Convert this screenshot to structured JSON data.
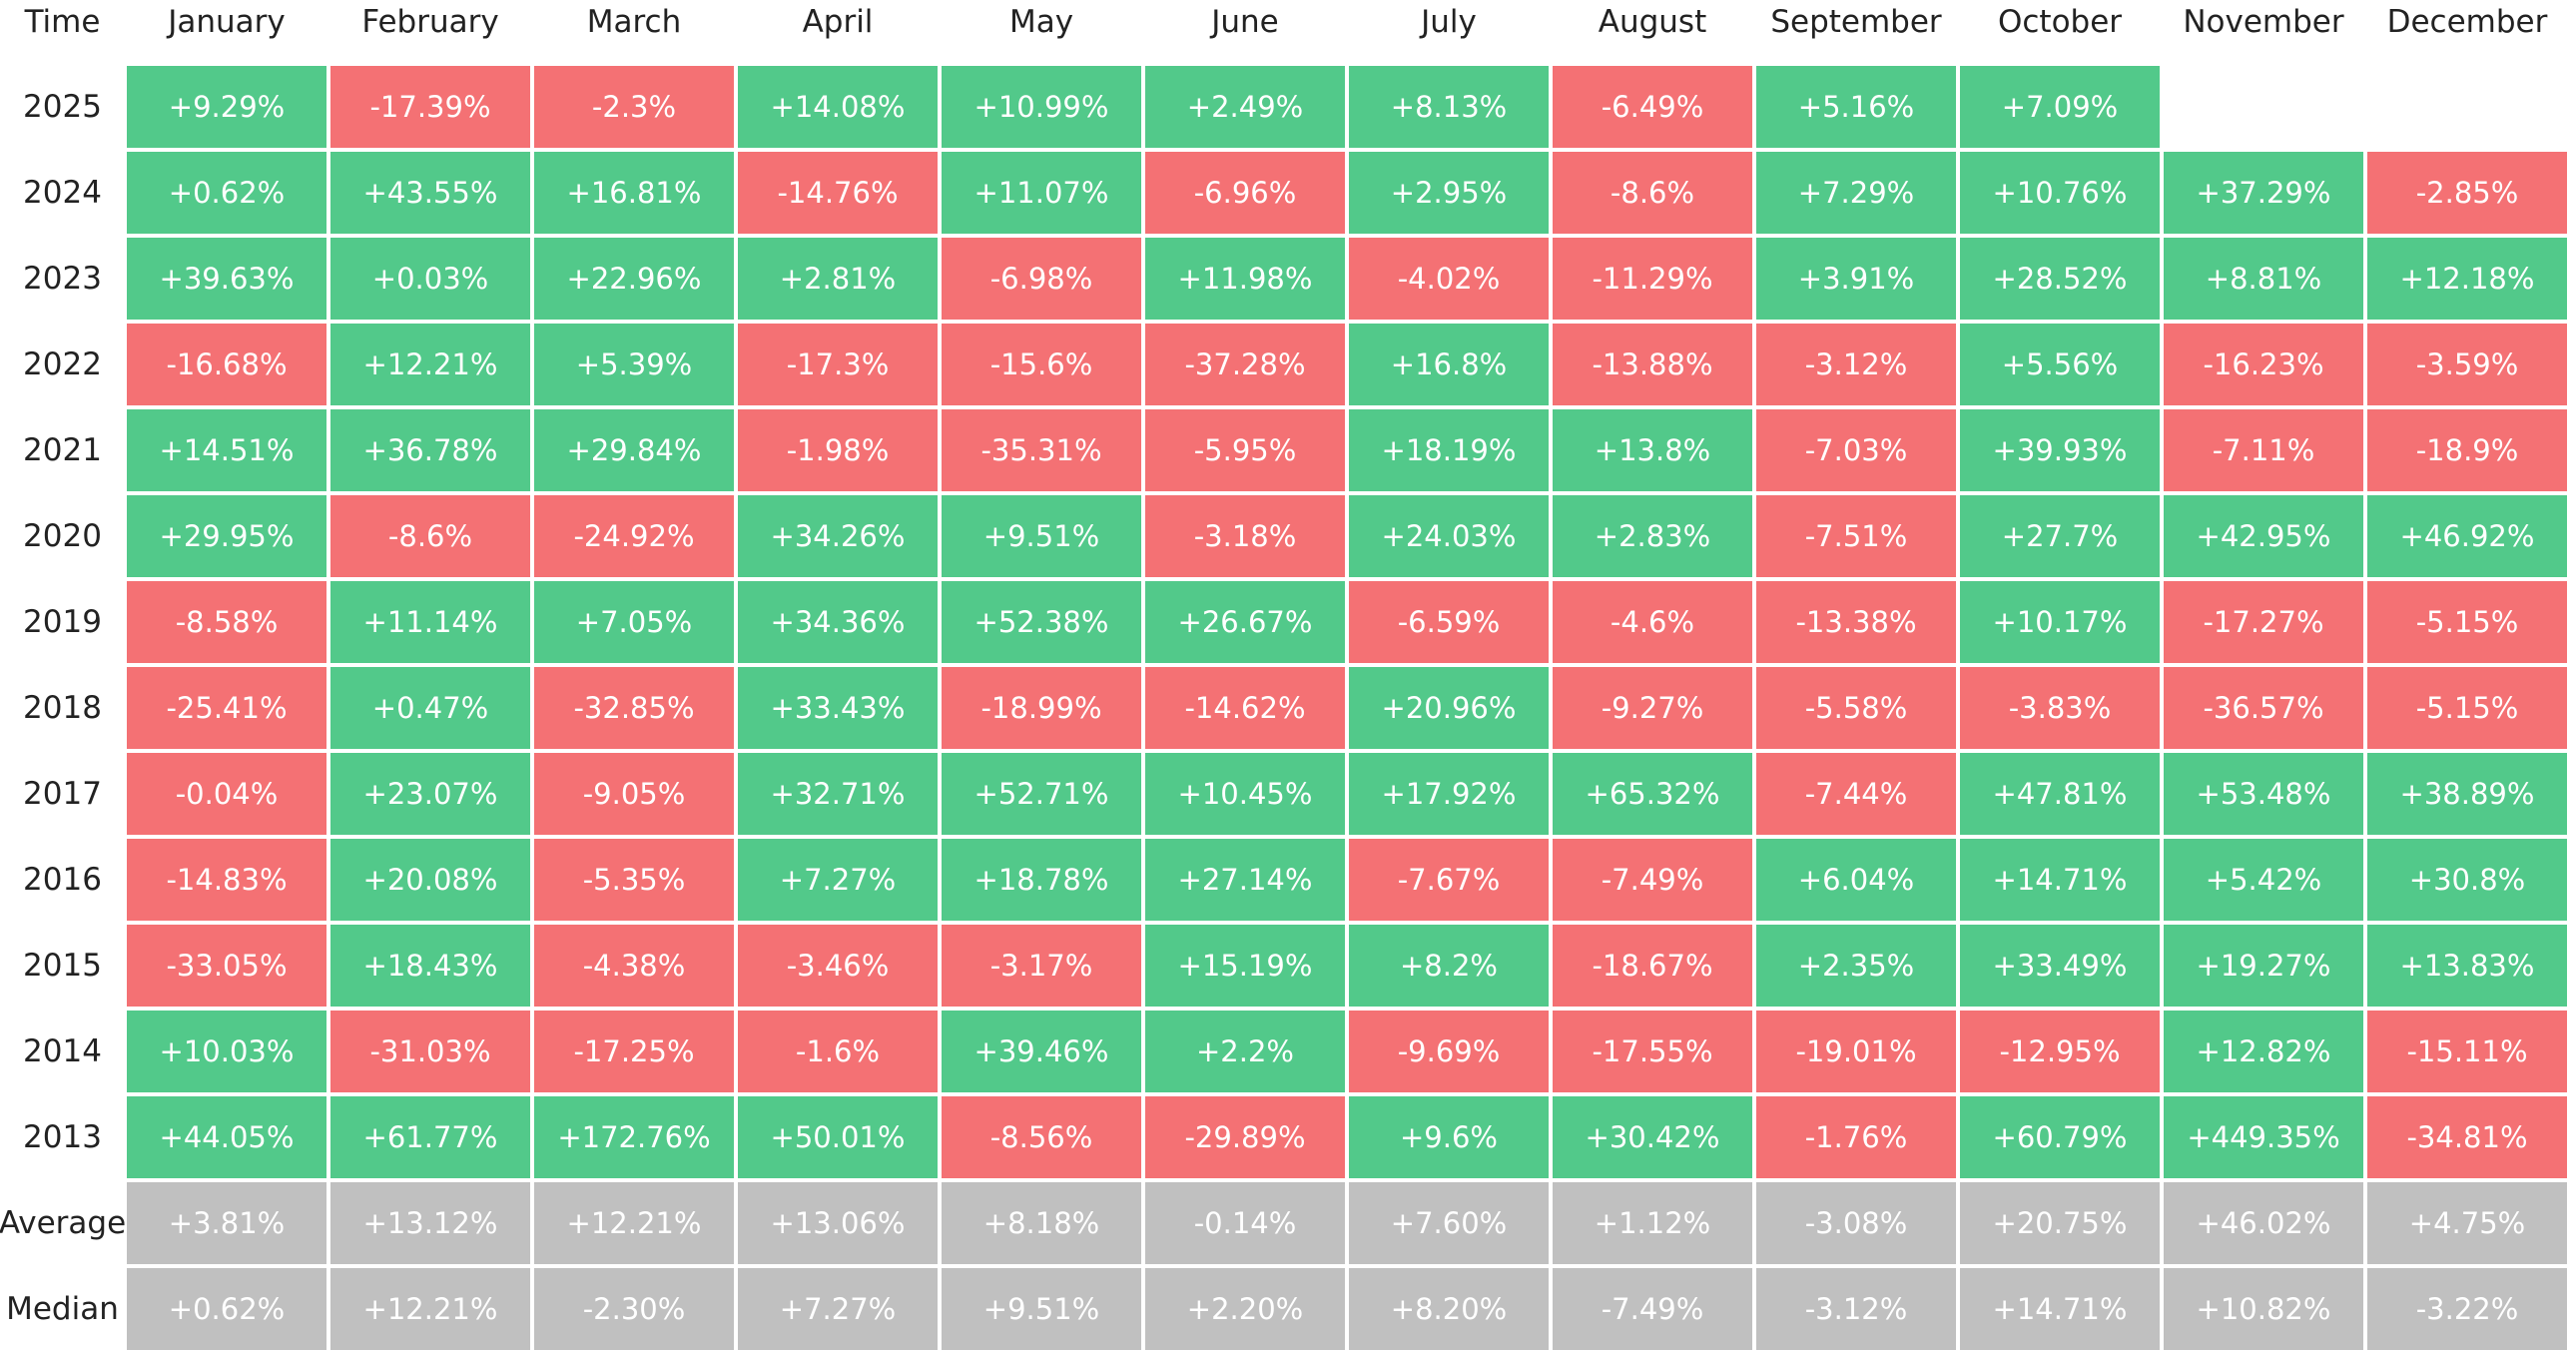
{
  "table": {
    "header": [
      "Time",
      "January",
      "February",
      "March",
      "April",
      "May",
      "June",
      "July",
      "August",
      "September",
      "October",
      "November",
      "December"
    ],
    "rows": [
      [
        "2025",
        "+9.29%",
        "-17.39%",
        "-2.3%",
        "+14.08%",
        "+10.99%",
        "+2.49%",
        "+8.13%",
        "-6.49%",
        "+5.16%",
        "+7.09%"
      ],
      [
        "2024",
        "+0.62%",
        "+43.55%",
        "+16.81%",
        "-14.76%",
        "+11.07%",
        "-6.96%",
        "+2.95%",
        "-8.6%",
        "+7.29%",
        "+10.76%",
        "+37.29%",
        "-2.85%"
      ],
      [
        "2023",
        "+39.63%",
        "+0.03%",
        "+22.96%",
        "+2.81%",
        "-6.98%",
        "+11.98%",
        "-4.02%",
        "-11.29%",
        "+3.91%",
        "+28.52%",
        "+8.81%",
        "+12.18%"
      ],
      [
        "2022",
        "-16.68%",
        "+12.21%",
        "+5.39%",
        "-17.3%",
        "-15.6%",
        "-37.28%",
        "+16.8%",
        "-13.88%",
        "-3.12%",
        "+5.56%",
        "-16.23%",
        "-3.59%"
      ],
      [
        "2021",
        "+14.51%",
        "+36.78%",
        "+29.84%",
        "-1.98%",
        "-35.31%",
        "-5.95%",
        "+18.19%",
        "+13.8%",
        "-7.03%",
        "+39.93%",
        "-7.11%",
        "-18.9%"
      ],
      [
        "2020",
        "+29.95%",
        "-8.6%",
        "-24.92%",
        "+34.26%",
        "+9.51%",
        "-3.18%",
        "+24.03%",
        "+2.83%",
        "-7.51%",
        "+27.7%",
        "+42.95%",
        "+46.92%"
      ],
      [
        "2019",
        "-8.58%",
        "+11.14%",
        "+7.05%",
        "+34.36%",
        "+52.38%",
        "+26.67%",
        "-6.59%",
        "-4.6%",
        "-13.38%",
        "+10.17%",
        "-17.27%",
        "-5.15%"
      ],
      [
        "2018",
        "-25.41%",
        "+0.47%",
        "-32.85%",
        "+33.43%",
        "-18.99%",
        "-14.62%",
        "+20.96%",
        "-9.27%",
        "-5.58%",
        "-3.83%",
        "-36.57%",
        "-5.15%"
      ],
      [
        "2017",
        "-0.04%",
        "+23.07%",
        "-9.05%",
        "+32.71%",
        "+52.71%",
        "+10.45%",
        "+17.92%",
        "+65.32%",
        "-7.44%",
        "+47.81%",
        "+53.48%",
        "+38.89%"
      ],
      [
        "2016",
        "-14.83%",
        "+20.08%",
        "-5.35%",
        "+7.27%",
        "+18.78%",
        "+27.14%",
        "-7.67%",
        "-7.49%",
        "+6.04%",
        "+14.71%",
        "+5.42%",
        "+30.8%"
      ],
      [
        "2015",
        "-33.05%",
        "+18.43%",
        "-4.38%",
        "-3.46%",
        "-3.17%",
        "+15.19%",
        "+8.2%",
        "-18.67%",
        "+2.35%",
        "+33.49%",
        "+19.27%",
        "+13.83%"
      ],
      [
        "2014",
        "+10.03%",
        "-31.03%",
        "-17.25%",
        "-1.6%",
        "+39.46%",
        "+2.2%",
        "-9.69%",
        "-17.55%",
        "-19.01%",
        "-12.95%",
        "+12.82%",
        "-15.11%"
      ],
      [
        "2013",
        "+44.05%",
        "+61.77%",
        "+172.76%",
        "+50.01%",
        "-8.56%",
        "-29.89%",
        "+9.6%",
        "+30.42%",
        "-1.76%",
        "+60.79%",
        "+449.35%",
        "-34.81%"
      ]
    ],
    "summary_rows": [
      [
        "Average",
        "+3.81%",
        "+13.12%",
        "+12.21%",
        "+13.06%",
        "+8.18%",
        "-0.14%",
        "+7.60%",
        "+1.12%",
        "-3.08%",
        "+20.75%",
        "+46.02%",
        "+4.75%"
      ],
      [
        "Median",
        "+0.62%",
        "+12.21%",
        "-2.30%",
        "+7.27%",
        "+9.51%",
        "+2.20%",
        "+8.20%",
        "-7.49%",
        "-3.12%",
        "+14.71%",
        "+10.82%",
        "-3.22%"
      ]
    ],
    "colors": {
      "positive": "#52c98a",
      "negative": "#f47174",
      "summary": "#c0c0c0"
    }
  }
}
